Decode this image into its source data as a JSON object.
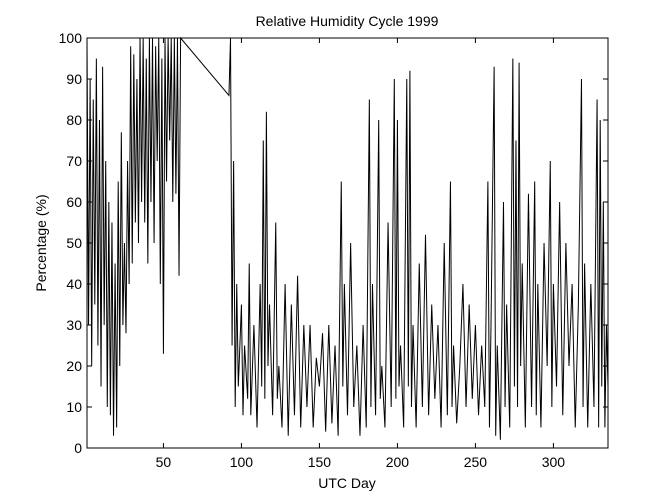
{
  "chart_data": {
    "type": "line",
    "title": "Relative Humidity Cycle 1999",
    "x_label": "UTC Day",
    "y_label": "Percentage (%)",
    "color": "#000000",
    "x": [
      1,
      2,
      3,
      4,
      5,
      6,
      7,
      8,
      9,
      10,
      11,
      12,
      13,
      14,
      15,
      16,
      17,
      18,
      19,
      20,
      21,
      22,
      23,
      24,
      25,
      26,
      27,
      28,
      29,
      30,
      31,
      32,
      33,
      34,
      35,
      36,
      37,
      38,
      39,
      40,
      41,
      42,
      43,
      44,
      45,
      46,
      47,
      48,
      49,
      50,
      51,
      52,
      53,
      54,
      55,
      56,
      57,
      58,
      59,
      60,
      61,
      92,
      93,
      94,
      95,
      96,
      97,
      98,
      100,
      101,
      102,
      104,
      105,
      106,
      108,
      110,
      112,
      113,
      114,
      115,
      116,
      117,
      118,
      120,
      122,
      123,
      124,
      126,
      128,
      130,
      132,
      134,
      136,
      138,
      140,
      142,
      144,
      146,
      148,
      150,
      152,
      154,
      156,
      158,
      160,
      162,
      164,
      165,
      166,
      168,
      170,
      172,
      174,
      176,
      178,
      180,
      182,
      183,
      184,
      186,
      188,
      189,
      190,
      192,
      194,
      196,
      198,
      199,
      200,
      201,
      202,
      204,
      206,
      207,
      208,
      209,
      210,
      212,
      214,
      216,
      218,
      220,
      222,
      224,
      226,
      228,
      230,
      232,
      234,
      235,
      236,
      238,
      240,
      242,
      244,
      246,
      248,
      250,
      252,
      254,
      256,
      258,
      259,
      260,
      262,
      263,
      264,
      266,
      268,
      269,
      270,
      272,
      274,
      275,
      276,
      277,
      278,
      279,
      280,
      282,
      284,
      286,
      288,
      289,
      290,
      292,
      294,
      296,
      298,
      299,
      300,
      302,
      304,
      306,
      308,
      310,
      312,
      314,
      316,
      318,
      319,
      320,
      322,
      324,
      326,
      328,
      329,
      330,
      331,
      332,
      333,
      334,
      335
    ],
    "values": [
      100,
      30,
      90,
      20,
      85,
      35,
      95,
      25,
      80,
      15,
      93,
      30,
      70,
      10,
      60,
      8,
      55,
      3,
      45,
      5,
      65,
      20,
      77,
      30,
      50,
      28,
      70,
      40,
      98,
      45,
      96,
      55,
      90,
      50,
      100,
      60,
      100,
      55,
      95,
      45,
      100,
      60,
      100,
      50,
      98,
      70,
      100,
      40,
      95,
      23,
      100,
      65,
      100,
      75,
      100,
      60,
      100,
      62,
      100,
      42,
      100,
      86,
      100,
      25,
      70,
      10,
      40,
      15,
      35,
      8,
      25,
      12,
      45,
      8,
      30,
      5,
      40,
      15,
      75,
      12,
      82,
      20,
      35,
      8,
      55,
      12,
      20,
      5,
      40,
      3,
      35,
      8,
      42,
      5,
      30,
      10,
      30,
      5,
      22,
      15,
      28,
      4,
      30,
      6,
      25,
      3,
      65,
      15,
      40,
      8,
      50,
      10,
      25,
      3,
      30,
      5,
      85,
      10,
      40,
      8,
      80,
      12,
      20,
      5,
      55,
      10,
      90,
      12,
      80,
      15,
      25,
      5,
      90,
      15,
      92,
      10,
      30,
      5,
      45,
      10,
      52,
      8,
      35,
      12,
      30,
      5,
      50,
      8,
      65,
      10,
      25,
      6,
      20,
      40,
      10,
      35,
      12,
      30,
      8,
      25,
      10,
      65,
      5,
      30,
      93,
      3,
      25,
      2,
      60,
      10,
      35,
      5,
      95,
      15,
      75,
      10,
      94,
      20,
      45,
      5,
      62,
      10,
      65,
      8,
      40,
      5,
      50,
      20,
      70,
      10,
      40,
      15,
      60,
      8,
      50,
      20,
      40,
      5,
      35,
      90,
      10,
      45,
      5,
      40,
      10,
      85,
      5,
      80,
      15,
      60,
      5,
      30,
      15
    ],
    "xlim": [
      1,
      335
    ],
    "ylim": [
      0,
      100
    ],
    "xticks": [
      50,
      100,
      150,
      200,
      250,
      300
    ],
    "yticks": [
      0,
      10,
      20,
      30,
      40,
      50,
      60,
      70,
      80,
      90,
      100
    ]
  }
}
